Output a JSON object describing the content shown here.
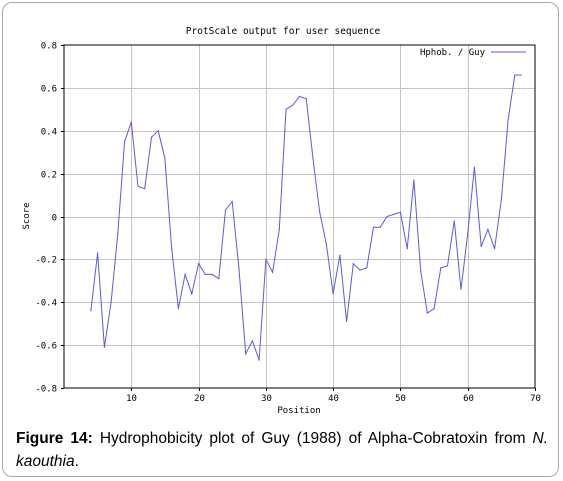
{
  "chart_data": {
    "type": "line",
    "title": "ProtScale output for user sequence",
    "xlabel": "Position",
    "ylabel": "Score",
    "xlim": [
      0,
      70
    ],
    "ylim": [
      -0.8,
      0.8
    ],
    "xticks": [
      10,
      20,
      30,
      40,
      50,
      60,
      70
    ],
    "yticks": [
      -0.8,
      -0.6,
      -0.4,
      -0.2,
      0,
      0.2,
      0.4,
      0.6,
      0.8
    ],
    "xtick_labels": [
      "10",
      "20",
      "30",
      "40",
      "50",
      "60",
      "70"
    ],
    "ytick_labels": [
      "-0.8",
      "-0.6",
      "-0.4",
      "-0.2",
      "0",
      "0.2",
      "0.4",
      "0.6",
      "0.8"
    ],
    "grid": true,
    "legend_position": "top-right",
    "series": [
      {
        "name": "Hphob. / Guy",
        "color": "#5b5bd6",
        "x": [
          4,
          5,
          6,
          7,
          8,
          9,
          10,
          11,
          12,
          13,
          14,
          15,
          16,
          17,
          18,
          19,
          20,
          21,
          22,
          23,
          24,
          25,
          26,
          27,
          28,
          29,
          30,
          31,
          32,
          33,
          34,
          35,
          36,
          37,
          38,
          39,
          40,
          41,
          42,
          43,
          44,
          45,
          46,
          47,
          48,
          49,
          50,
          51,
          52,
          53,
          54,
          55,
          56,
          57,
          58,
          59,
          60,
          61,
          62,
          63,
          64,
          65,
          66,
          67,
          68
        ],
        "values": [
          -0.44,
          -0.17,
          -0.61,
          -0.4,
          -0.08,
          0.35,
          0.44,
          0.14,
          0.13,
          0.37,
          0.4,
          0.27,
          -0.15,
          -0.43,
          -0.27,
          -0.36,
          -0.22,
          -0.27,
          -0.27,
          -0.29,
          0.03,
          0.07,
          -0.24,
          -0.64,
          -0.58,
          -0.67,
          -0.2,
          -0.26,
          -0.06,
          0.5,
          0.52,
          0.56,
          0.55,
          0.27,
          0.02,
          -0.13,
          -0.36,
          -0.18,
          -0.49,
          -0.22,
          -0.25,
          -0.24,
          -0.05,
          -0.05,
          0.0,
          0.01,
          0.02,
          -0.15,
          0.17,
          -0.25,
          -0.45,
          -0.43,
          -0.24,
          -0.23,
          -0.02,
          -0.34,
          -0.08,
          0.23,
          -0.14,
          -0.06,
          -0.15,
          0.08,
          0.45,
          0.66,
          0.66
        ]
      }
    ]
  },
  "caption": {
    "label": "Figure 14:",
    "text": " Hydrophobicity plot of Guy (1988) of Alpha-Cobratoxin from ",
    "species": "N. kaouthia",
    "end": "."
  }
}
